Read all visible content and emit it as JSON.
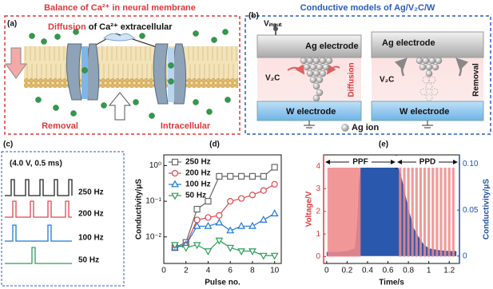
{
  "panel_a": {
    "label": "(a)",
    "title": "Balance of Ca²⁺ in neural membrane",
    "diffusion": "Diffusion",
    "diffusion_rest": " of Ca²⁺ extracellular",
    "removal": "Removal",
    "intracellular": "Intracellular"
  },
  "panel_b": {
    "label": "(b)",
    "title": "Conductive models of Ag/V₂C/W",
    "vinput": "Vᵢₙₚᵤₜ",
    "ag_electrode": "Ag electrode",
    "w_electrode": "W electrode",
    "v2c": "V₂C",
    "diffusion": "Diffusion",
    "removal": "Removal",
    "ag_ion": "Ag ion"
  },
  "panel_c": {
    "label": "(c)",
    "condition": "(4.0 V, 0.5 ms)",
    "rows": [
      {
        "label": "250 Hz",
        "color": "#222222"
      },
      {
        "label": "200 Hz",
        "color": "#e0474c"
      },
      {
        "label": "100 Hz",
        "color": "#1f78d1"
      },
      {
        "label": "50 Hz",
        "color": "#2e9e5b"
      }
    ]
  },
  "chart_data": [
    {
      "type": "line",
      "panel_label": "(d)",
      "xlabel": "Pulse no.",
      "ylabel": "Conductivity/μS",
      "log_y": true,
      "legend": "upper left",
      "x": [
        1,
        2,
        3,
        4,
        5,
        6,
        7,
        8,
        9,
        10
      ],
      "xlim": [
        0,
        10.6
      ],
      "xticks": [
        0,
        2,
        4,
        6,
        8,
        10
      ],
      "ylim": [
        0.0018,
        2
      ],
      "yticks": [
        {
          "value": 0.01,
          "label": "10⁻²"
        },
        {
          "value": 0.1,
          "label": "10⁻¹"
        },
        {
          "value": 1,
          "label": "10⁰"
        }
      ],
      "series": [
        {
          "name": "250 Hz",
          "color": "#666666",
          "marker": "square",
          "values": [
            0.005,
            0.007,
            0.06,
            0.1,
            0.5,
            0.5,
            0.5,
            0.5,
            0.5,
            0.9
          ]
        },
        {
          "name": "200 Hz",
          "color": "#e0474c",
          "marker": "circle",
          "values": [
            0.005,
            0.006,
            0.03,
            0.035,
            0.04,
            0.1,
            0.12,
            0.15,
            0.2,
            0.3
          ]
        },
        {
          "name": "100 Hz",
          "color": "#1f78d1",
          "marker": "triangle-up",
          "values": [
            0.005,
            0.006,
            0.02,
            0.02,
            0.025,
            0.015,
            0.02,
            0.02,
            0.03,
            0.045
          ]
        },
        {
          "name": "50 Hz",
          "color": "#2e9e5b",
          "marker": "triangle-down",
          "values": [
            0.006,
            0.005,
            0.006,
            0.004,
            0.008,
            0.005,
            0.004,
            0.004,
            0.003,
            0.003
          ]
        }
      ]
    },
    {
      "type": "mixed",
      "panel_label": "(e)",
      "xlabel": "Time/s",
      "ylabel": "Voltage/V",
      "y2label": "Conductivity/μS",
      "annotations": [
        "PPF",
        "PPD"
      ],
      "xlim": [
        -0.03,
        1.3
      ],
      "xticks": [
        0,
        0.2,
        0.4,
        0.6,
        0.8,
        1,
        1.2
      ],
      "ylim": [
        -0.3,
        4.5
      ],
      "yticks": [
        0,
        1,
        2,
        3,
        4
      ],
      "y2lim": [
        -0.008,
        0.11
      ],
      "y2ticks": [
        0,
        0.05,
        {
          "value": 0.1,
          "label": "0.10"
        }
      ],
      "series": [
        {
          "type": "bar",
          "color": "#f08a8a",
          "x": [
            0.02,
            0.04,
            0.06,
            0.08,
            0.1,
            0.12,
            0.14,
            0.16,
            0.18,
            0.2,
            0.22,
            0.24,
            0.26,
            0.28,
            0.3,
            0.32,
            0.72,
            0.76,
            0.8,
            0.84,
            0.88,
            0.92,
            0.96,
            1,
            1.04,
            1.08,
            1.12,
            1.16,
            1.2,
            1.24
          ],
          "values": [
            4,
            4,
            4,
            4,
            4,
            4,
            4,
            4,
            4,
            4,
            4,
            4,
            4,
            4,
            4,
            4,
            4,
            4,
            4,
            4,
            4,
            4,
            4,
            4,
            4,
            4,
            4,
            4,
            4,
            4
          ]
        },
        {
          "type": "area",
          "axis": "y2",
          "color": "#1f4fa8",
          "x": [
            0,
            0.1,
            0.2,
            0.28,
            0.3,
            0.32,
            0.34,
            0.68,
            0.72,
            0.76,
            0.8,
            0.85,
            0.9,
            0.95,
            1,
            1.1,
            1.2,
            1.27
          ],
          "values": [
            0.004,
            0.004,
            0.005,
            0.008,
            0.03,
            0.08,
            0.1,
            0.1,
            0.09,
            0.07,
            0.05,
            0.03,
            0.02,
            0.012,
            0.008,
            0.006,
            0.005,
            0.005
          ]
        }
      ]
    }
  ]
}
